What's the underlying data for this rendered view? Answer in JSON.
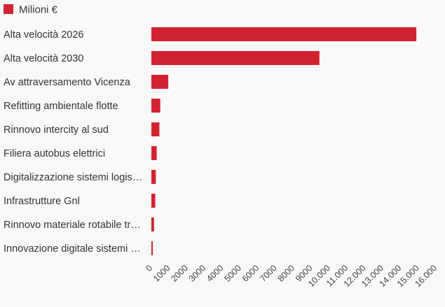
{
  "chart_data": {
    "type": "bar",
    "orientation": "horizontal",
    "legend": {
      "position": "top-left"
    },
    "series": [
      {
        "name": "Milioni €",
        "color": "#d1232f",
        "values": [
          14900,
          9450,
          950,
          500,
          450,
          300,
          250,
          220,
          150,
          80
        ]
      }
    ],
    "categories": [
      "Alta velocità 2026",
      "Alta velocità 2030",
      "Av attraversamento Vicenza",
      "Refitting ambientale flotte",
      "Rinnovo intercity al sud",
      "Filiera autobus elettrici",
      "Digitalizzazione sistemi logis…",
      "Infrastrutture Gnl",
      "Rinnovo materiale rotabile tr…",
      "Innovazione digitale sistemi …"
    ],
    "xlim": [
      0,
      16000
    ],
    "x_ticks": [
      0,
      1000,
      2000,
      3000,
      4000,
      5000,
      6000,
      7000,
      8000,
      9000,
      10000,
      11000,
      12000,
      13000,
      14000,
      15000,
      16000
    ],
    "x_tick_labels": [
      "0",
      "1000",
      "2000",
      "3000",
      "4000",
      "5000",
      "6000",
      "7000",
      "8000",
      "9000",
      "10.000",
      "11.000",
      "12.000",
      "13.000",
      "14.000",
      "15.000",
      "16.000"
    ],
    "grid": false,
    "title": "",
    "xlabel": "",
    "ylabel": ""
  }
}
